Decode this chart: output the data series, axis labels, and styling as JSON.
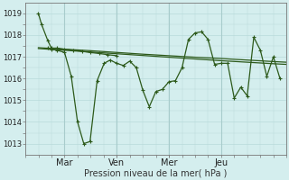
{
  "xlabel": "Pression niveau de la mer( hPa )",
  "background_color": "#d4eeee",
  "grid_color": "#b8dada",
  "line_color": "#2d5a1b",
  "ylim": [
    1012.5,
    1019.5
  ],
  "yticks": [
    1013,
    1014,
    1015,
    1016,
    1017,
    1018,
    1019
  ],
  "day_labels": [
    "Mar",
    "Ven",
    "Mer",
    "Jeu"
  ],
  "day_positions": [
    0.167,
    0.5,
    0.833,
    1.167
  ],
  "xlim": [
    -0.083,
    1.583
  ],
  "series1": {
    "x": [
      0.0,
      0.02,
      0.06,
      0.083,
      0.12,
      0.167,
      0.22,
      0.28,
      0.33,
      0.39,
      0.44,
      0.5
    ],
    "y": [
      1019.0,
      1018.5,
      1017.75,
      1017.4,
      1017.4,
      1017.35,
      1017.3,
      1017.25,
      1017.2,
      1017.15,
      1017.1,
      1017.05
    ],
    "marker": true
  },
  "series2": {
    "x": [
      0.06,
      0.083,
      0.12,
      0.167,
      0.21,
      0.25,
      0.29,
      0.33,
      0.375,
      0.42,
      0.458,
      0.5,
      0.542,
      0.583,
      0.625,
      0.667,
      0.708,
      0.75,
      0.792,
      0.833,
      0.875,
      0.917,
      0.958,
      1.0,
      1.042,
      1.083,
      1.125,
      1.167,
      1.208,
      1.25,
      1.292,
      1.333,
      1.375,
      1.417,
      1.458,
      1.5,
      1.542
    ],
    "y": [
      1017.4,
      1017.35,
      1017.3,
      1017.2,
      1016.1,
      1014.0,
      1013.0,
      1013.1,
      1015.9,
      1016.7,
      1016.85,
      1016.7,
      1016.6,
      1016.8,
      1016.5,
      1015.45,
      1014.7,
      1015.4,
      1015.5,
      1015.85,
      1015.9,
      1016.5,
      1017.8,
      1018.1,
      1018.15,
      1017.8,
      1016.65,
      1016.7,
      1016.7,
      1015.1,
      1015.6,
      1015.2,
      1017.9,
      1017.3,
      1016.1,
      1017.0,
      1016.0
    ],
    "marker": true
  },
  "series3": {
    "x": [
      0.0,
      0.167,
      0.333,
      0.5,
      0.667,
      0.833,
      1.0,
      1.167,
      1.333,
      1.5,
      1.583
    ],
    "y": [
      1017.42,
      1017.35,
      1017.28,
      1017.2,
      1017.12,
      1017.05,
      1016.98,
      1016.92,
      1016.85,
      1016.78,
      1016.75
    ],
    "marker": false
  },
  "series4": {
    "x": [
      0.0,
      0.167,
      0.333,
      0.5,
      0.667,
      0.833,
      1.0,
      1.167,
      1.333,
      1.5,
      1.583
    ],
    "y": [
      1017.38,
      1017.3,
      1017.22,
      1017.14,
      1017.06,
      1016.98,
      1016.9,
      1016.82,
      1016.75,
      1016.68,
      1016.65
    ],
    "marker": false
  }
}
